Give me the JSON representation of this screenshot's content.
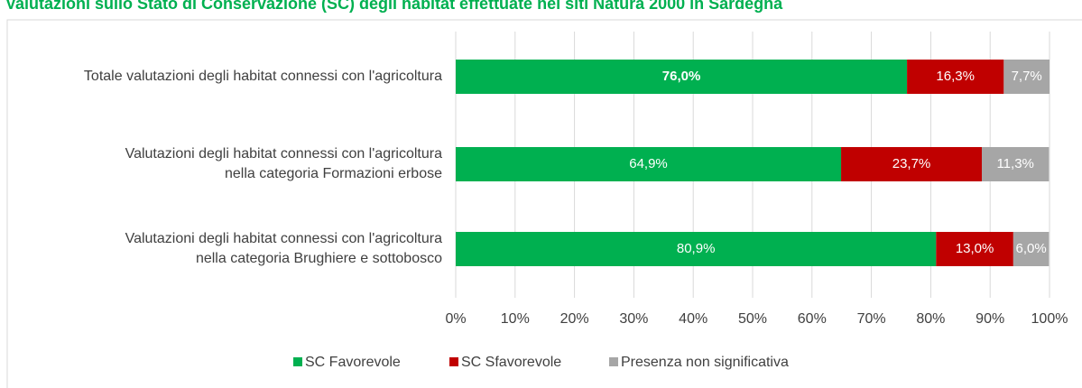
{
  "chart_data": {
    "type": "stacked-barh",
    "title": "Valutazioni sullo Stato di Conservazione (SC) degli habitat effettuate nei siti Natura 2000 in Sardegna",
    "categories": [
      [
        "Totale valutazioni degli habitat connessi con l'agricoltura"
      ],
      [
        "Valutazioni degli habitat connessi con l'agricoltura",
        "nella categoria Formazioni erbose"
      ],
      [
        "Valutazioni degli habitat connessi con l'agricoltura",
        "nella categoria Brughiere e sottobosco"
      ]
    ],
    "series": [
      {
        "name": "SC Favorevole",
        "color": "#00b050",
        "values": [
          76.0,
          64.9,
          80.9
        ],
        "value_labels": [
          "76,0%",
          "64,9%",
          "80,9%"
        ]
      },
      {
        "name": "SC Sfavorevole",
        "color": "#c00000",
        "values": [
          16.3,
          23.7,
          13.0
        ],
        "value_labels": [
          "16,3%",
          "23,7%",
          "13,0%"
        ]
      },
      {
        "name": "Presenza non significativa",
        "color": "#a6a6a6",
        "values": [
          7.7,
          11.3,
          6.0
        ],
        "value_labels": [
          "7,7%",
          "11,3%",
          "6,0%"
        ]
      }
    ],
    "xlim": [
      0,
      100
    ],
    "xticks": [
      {
        "value": 0,
        "label": "0%"
      },
      {
        "value": 10,
        "label": "10%"
      },
      {
        "value": 20,
        "label": "20%"
      },
      {
        "value": 30,
        "label": "30%"
      },
      {
        "value": 40,
        "label": "40%"
      },
      {
        "value": 50,
        "label": "50%"
      },
      {
        "value": 60,
        "label": "60%"
      },
      {
        "value": 70,
        "label": "70%"
      },
      {
        "value": 80,
        "label": "80%"
      },
      {
        "value": 90,
        "label": "90%"
      },
      {
        "value": 100,
        "label": "100%"
      }
    ],
    "grid": true,
    "legend": "bottom"
  }
}
